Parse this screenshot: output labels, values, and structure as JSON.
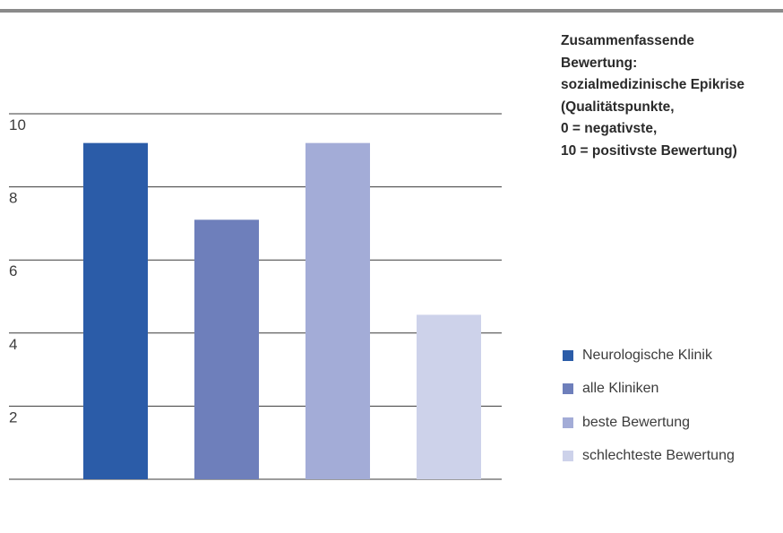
{
  "chart_data": {
    "type": "bar",
    "title_lines": [
      "Zusammenfassende",
      "Bewertung:",
      "sozialmedizinische Epikrise",
      "(Qualitätspunkte,",
      "0 = negativste,",
      "10 = positivste Bewertung)"
    ],
    "categories": [
      "Neurologische Klinik",
      "alle Kliniken",
      "beste Bewertung",
      "schlechteste Bewertung"
    ],
    "values": [
      9.2,
      7.1,
      9.2,
      4.5
    ],
    "colors": [
      "#2b5ca8",
      "#6e7fbb",
      "#a3acd7",
      "#cdd2ea"
    ],
    "yticks": [
      "2",
      "4",
      "6",
      "8",
      "10"
    ],
    "ylim": [
      0,
      10
    ],
    "grid": true,
    "legend_position": "right"
  }
}
